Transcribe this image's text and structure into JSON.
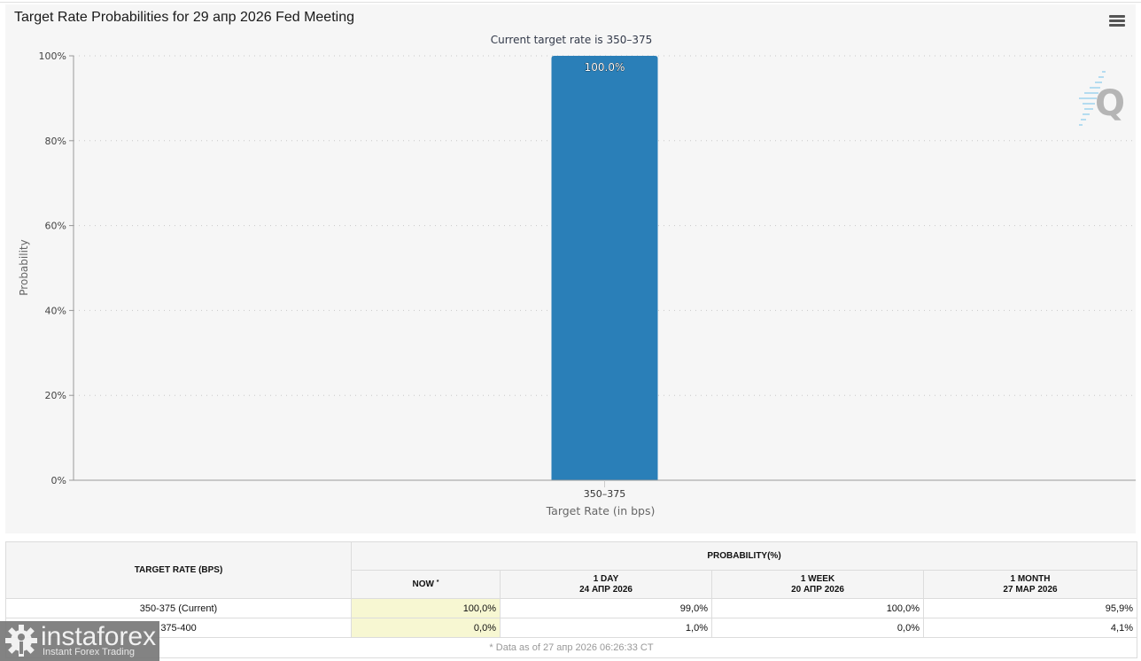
{
  "chart": {
    "menu_icon": "hamburger-menu-icon",
    "watermark_icon": "q-logo-icon"
  },
  "chart_data": {
    "type": "bar",
    "title": "Target Rate Probabilities for 29 апр 2026 Fed Meeting",
    "subtitle": "Current target rate is 350–375",
    "categories": [
      "350–375"
    ],
    "values": [
      100.0
    ],
    "data_labels": [
      "100.0%"
    ],
    "xlabel": "Target Rate (in bps)",
    "ylabel": "Probability",
    "ylim": [
      0,
      100
    ],
    "yticks": [
      "0%",
      "20%",
      "40%",
      "60%",
      "80%",
      "100%"
    ],
    "ytick_values": [
      0,
      20,
      40,
      60,
      80,
      100
    ],
    "grid": true,
    "bar_color": "#2a7fb8"
  },
  "table": {
    "col_target": "TARGET RATE (BPS)",
    "col_group": "PROBABILITY(%)",
    "sub_headers": [
      {
        "line1": "NOW",
        "line2": "",
        "marker": "*"
      },
      {
        "line1": "1 DAY",
        "line2": "24 АПР 2026",
        "marker": ""
      },
      {
        "line1": "1 WEEK",
        "line2": "20 АПР 2026",
        "marker": ""
      },
      {
        "line1": "1 MONTH",
        "line2": "27 МАР 2026",
        "marker": ""
      }
    ],
    "rows": [
      {
        "rate": "350-375 (Current)",
        "values": [
          "100,0%",
          "99,0%",
          "100,0%",
          "95,9%"
        ]
      },
      {
        "rate": "375-400",
        "values": [
          "0,0%",
          "1,0%",
          "0,0%",
          "4,1%"
        ]
      }
    ],
    "footnote": "* Data as of 27 апр 2026 06:26:33 CT",
    "highlight_color": "#f7f7d2"
  },
  "logo": {
    "brand": "instaforex",
    "tagline": "Instant Forex Trading"
  }
}
